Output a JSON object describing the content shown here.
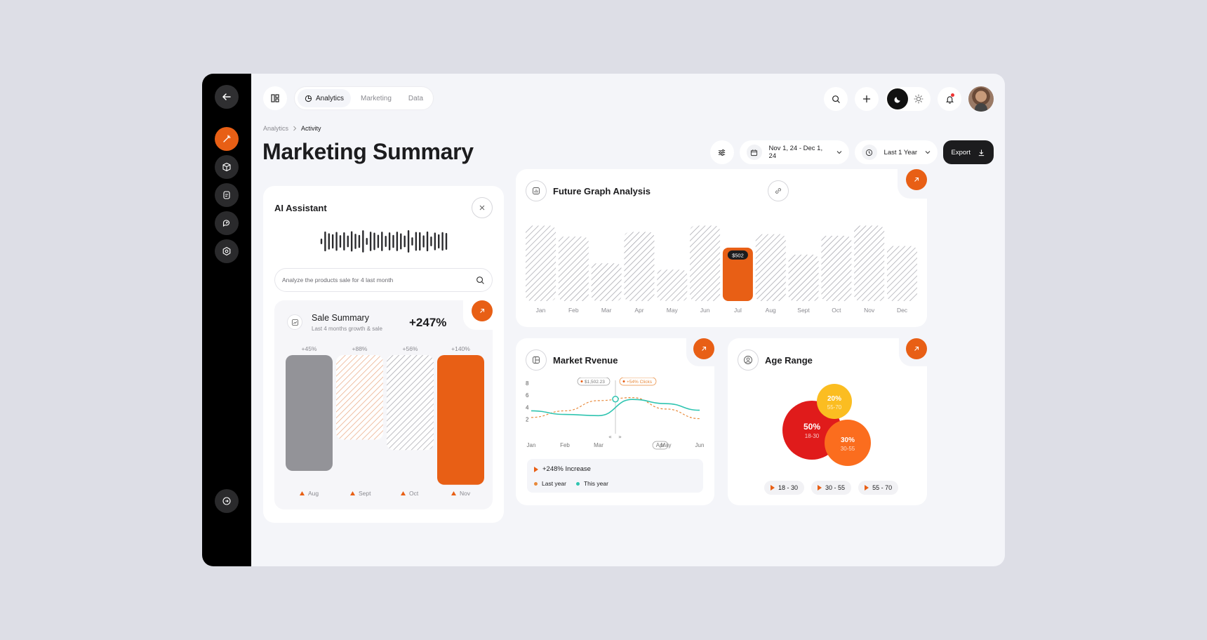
{
  "tabs": [
    {
      "label": "Analytics",
      "active": true
    },
    {
      "label": "Marketing",
      "active": false
    },
    {
      "label": "Data",
      "active": false
    }
  ],
  "breadcrumb": {
    "parent": "Analytics",
    "current": "Activity"
  },
  "page_title": "Marketing Summary",
  "controls": {
    "date_range": "Nov 1, 24 - Dec 1, 24",
    "period": "Last 1 Year",
    "export_label": "Export"
  },
  "ai_assistant": {
    "title": "AI Assistant",
    "input_value": "Analyze the products sale for 4 last month"
  },
  "sale_summary": {
    "title": "Sale Summary",
    "subtitle": "Last 4 months growth & sale",
    "growth": "+247%",
    "bars": [
      {
        "month": "Aug",
        "pct": "+45%",
        "level": 1.0,
        "style": "gray"
      },
      {
        "month": "Sept",
        "pct": "+88%",
        "level": 0.73,
        "style": "hatch-orange"
      },
      {
        "month": "Oct",
        "pct": "+56%",
        "level": 0.82,
        "style": "hatch-gray"
      },
      {
        "month": "Nov",
        "pct": "+140%",
        "level": 1.12,
        "style": "orange"
      }
    ]
  },
  "future_graph": {
    "title": "Future Graph Analysis",
    "chart_data": {
      "type": "bar",
      "categories": [
        "Jan",
        "Feb",
        "Mar",
        "Apr",
        "May",
        "Jun",
        "Jul",
        "Aug",
        "Sept",
        "Oct",
        "Nov",
        "Dec"
      ],
      "values": [
        0.96,
        0.82,
        0.48,
        0.88,
        0.4,
        0.96,
        0.68,
        0.85,
        0.59,
        0.83,
        0.96,
        0.7
      ],
      "highlight_index": 6,
      "highlight_label": "$502"
    }
  },
  "market_revenue": {
    "title": "Market Rvenue",
    "chart_data": {
      "type": "line",
      "categories": [
        "Jan",
        "Feb",
        "Mar",
        "Apr",
        "May",
        "Jun"
      ],
      "yticks": [
        8,
        6,
        4,
        2
      ],
      "ylim": [
        1,
        8
      ],
      "series": [
        {
          "name": "Last year",
          "color": "#e8893a",
          "values": [
            2.3,
            3.4,
            5.1,
            5.6,
            3.7,
            2.1
          ]
        },
        {
          "name": "This year",
          "color": "#2ec4b0",
          "values": [
            3.4,
            2.8,
            2.6,
            5.3,
            4.6,
            3.5
          ]
        }
      ],
      "tooltip_value": "$1,502.23",
      "tooltip_clicks": "+54% Clicks",
      "selected_category": "Apr"
    },
    "increase_label": "+248% Increase",
    "legend": {
      "last_year": "Last year",
      "this_year": "This year"
    }
  },
  "age_range": {
    "title": "Age Range",
    "chart_data": {
      "type": "bubble",
      "bubbles": [
        {
          "pct": "50%",
          "range": "18-30",
          "color": "#e01b1b",
          "value": 50
        },
        {
          "pct": "20%",
          "range": "55-70",
          "color": "#fbbd21",
          "value": 20
        },
        {
          "pct": "30%",
          "range": "30-55",
          "color": "#fb6d1e",
          "value": 30
        }
      ]
    },
    "pills": [
      "18 - 30",
      "30 - 55",
      "55 - 70"
    ]
  },
  "colors": {
    "accent": "#e85f15",
    "sidebar": "#000000",
    "background": "#f4f5f9"
  }
}
